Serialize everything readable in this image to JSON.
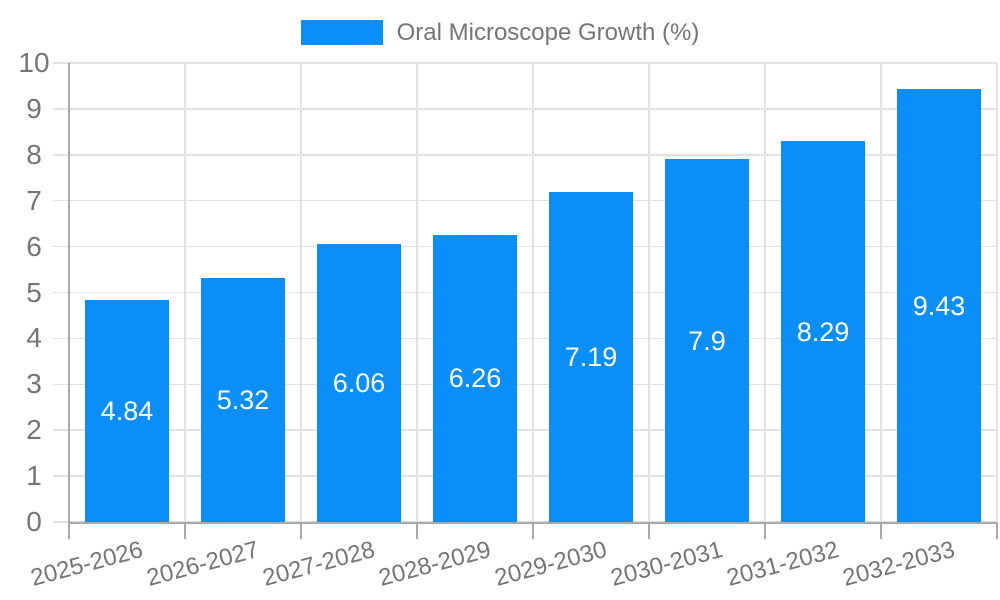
{
  "chart_data": {
    "type": "bar",
    "title": "Oral Microscope Growth (%)",
    "legend_position": "top-center",
    "categories": [
      "2025-2026",
      "2026-2027",
      "2027-2028",
      "2028-2029",
      "2029-2030",
      "2030-2031",
      "2031-2032",
      "2032-2033"
    ],
    "series": [
      {
        "name": "Oral Microscope Growth (%)",
        "values": [
          4.84,
          5.32,
          6.06,
          6.26,
          7.19,
          7.9,
          8.29,
          9.43
        ],
        "value_labels": [
          "4.84",
          "5.32",
          "6.06",
          "6.26",
          "7.19",
          "7.9",
          "8.29",
          "9.43"
        ]
      }
    ],
    "xlabel": "",
    "ylabel": "",
    "ylim": [
      0,
      10
    ],
    "yticks": [
      0,
      1,
      2,
      3,
      4,
      5,
      6,
      7,
      8,
      9,
      10
    ],
    "grid": true,
    "colors": {
      "bar": "#0a8ef8",
      "value_label": "#ffffff",
      "axis_text": "#757575",
      "grid_line": "#e2e2e2",
      "axis_line": "#a9a9a9",
      "background": "#ffffff"
    }
  }
}
